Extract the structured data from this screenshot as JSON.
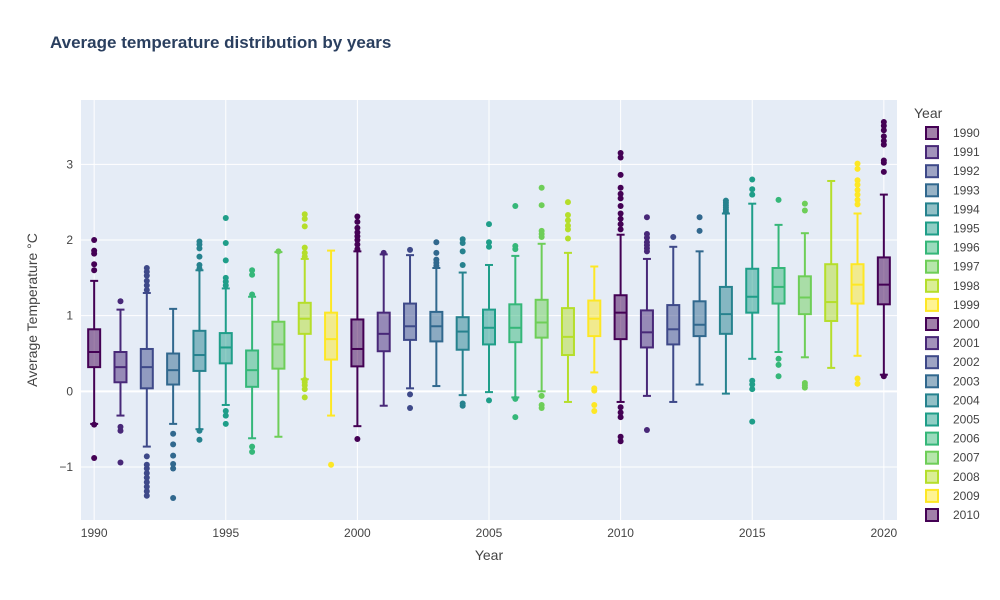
{
  "chart_data": {
    "type": "box",
    "title": "Average temperature distribution by years",
    "xlabel": "Year",
    "ylabel": "Average Temperature °C",
    "xlim": [
      1989.5,
      2020.5
    ],
    "ylim": [
      -1.7,
      3.85
    ],
    "x_ticks": [
      1990,
      1995,
      2000,
      2005,
      2010,
      2015,
      2020
    ],
    "y_ticks": [
      -1,
      0,
      1,
      2,
      3
    ],
    "y_tick_labels": [
      "−1",
      "0",
      "1",
      "2",
      "3"
    ],
    "legend": {
      "title": "Year",
      "position": "right",
      "entries": [
        "1990",
        "1991",
        "1992",
        "1993",
        "1994",
        "1995",
        "1996",
        "1997",
        "1998",
        "1999",
        "2000",
        "2001",
        "2002",
        "2003",
        "2004",
        "2005",
        "2006",
        "2007",
        "2008",
        "2009",
        "2010"
      ]
    },
    "colors": [
      "#440154",
      "#482878",
      "#3e4989",
      "#31688e",
      "#26828e",
      "#1f9e89",
      "#35b779",
      "#6ece58",
      "#b5de2b",
      "#fde725"
    ],
    "series": [
      {
        "name": "1990",
        "x": 1990,
        "q1": 0.32,
        "median": 0.52,
        "q3": 0.82,
        "whisker_low": -0.43,
        "whisker_high": 1.46,
        "outliers": [
          -0.88,
          -0.44,
          1.6,
          1.68,
          1.82,
          1.86,
          2.0
        ]
      },
      {
        "name": "1991",
        "x": 1991,
        "q1": 0.12,
        "median": 0.32,
        "q3": 0.52,
        "whisker_low": -0.32,
        "whisker_high": 1.08,
        "outliers": [
          -0.94,
          -0.52,
          -0.47,
          1.19
        ]
      },
      {
        "name": "1992",
        "x": 1992,
        "q1": 0.04,
        "median": 0.32,
        "q3": 0.56,
        "whisker_low": -0.73,
        "whisker_high": 1.3,
        "outliers": [
          -1.38,
          -1.32,
          -1.26,
          -1.2,
          -1.14,
          -1.08,
          -1.02,
          -0.97,
          -0.86,
          1.34,
          1.4,
          1.46,
          1.53,
          1.58,
          1.63
        ]
      },
      {
        "name": "1993",
        "x": 1993,
        "q1": 0.09,
        "median": 0.28,
        "q3": 0.5,
        "whisker_low": -0.43,
        "whisker_high": 1.09,
        "outliers": [
          -1.41,
          -1.02,
          -0.96,
          -0.85,
          -0.7,
          -0.56
        ]
      },
      {
        "name": "1994",
        "x": 1994,
        "q1": 0.27,
        "median": 0.48,
        "q3": 0.8,
        "whisker_low": -0.5,
        "whisker_high": 1.6,
        "outliers": [
          -0.64,
          -0.52,
          1.62,
          1.67,
          1.78,
          1.89,
          1.94,
          1.98
        ]
      },
      {
        "name": "1995",
        "x": 1995,
        "q1": 0.37,
        "median": 0.58,
        "q3": 0.77,
        "whisker_low": -0.18,
        "whisker_high": 1.36,
        "outliers": [
          -0.43,
          -0.32,
          -0.26,
          1.4,
          1.45,
          1.5,
          1.73,
          1.96,
          2.29
        ]
      },
      {
        "name": "1996",
        "x": 1996,
        "q1": 0.06,
        "median": 0.28,
        "q3": 0.54,
        "whisker_low": -0.62,
        "whisker_high": 1.25,
        "outliers": [
          -0.8,
          -0.73,
          1.28,
          1.54,
          1.6
        ]
      },
      {
        "name": "1997",
        "x": 1997,
        "q1": 0.3,
        "median": 0.62,
        "q3": 0.92,
        "whisker_low": -0.6,
        "whisker_high": 1.84,
        "outliers": [
          1.85
        ]
      },
      {
        "name": "1998",
        "x": 1998,
        "q1": 0.76,
        "median": 0.96,
        "q3": 1.17,
        "whisker_low": 0.16,
        "whisker_high": 1.75,
        "outliers": [
          -0.08,
          0.03,
          0.08,
          0.12,
          0.15,
          1.78,
          1.83,
          1.9,
          2.18,
          2.28,
          2.34
        ]
      },
      {
        "name": "1999",
        "x": 1999,
        "q1": 0.42,
        "median": 0.69,
        "q3": 1.04,
        "whisker_low": -0.32,
        "whisker_high": 1.86,
        "outliers": [
          -0.97
        ]
      },
      {
        "name": "2000",
        "x": 2000,
        "q1": 0.33,
        "median": 0.56,
        "q3": 0.95,
        "whisker_low": -0.46,
        "whisker_high": 1.85,
        "outliers": [
          -0.63,
          1.88,
          1.94,
          2.0,
          2.05,
          2.1,
          2.16,
          2.24,
          2.31
        ]
      },
      {
        "name": "2001",
        "x": 2001,
        "q1": 0.53,
        "median": 0.76,
        "q3": 1.04,
        "whisker_low": -0.19,
        "whisker_high": 1.81,
        "outliers": [
          1.83
        ]
      },
      {
        "name": "2002",
        "x": 2002,
        "q1": 0.68,
        "median": 0.86,
        "q3": 1.16,
        "whisker_low": 0.04,
        "whisker_high": 1.8,
        "outliers": [
          -0.22,
          -0.04,
          1.87
        ]
      },
      {
        "name": "2003",
        "x": 2003,
        "q1": 0.66,
        "median": 0.86,
        "q3": 1.05,
        "whisker_low": 0.07,
        "whisker_high": 1.63,
        "outliers": [
          1.66,
          1.7,
          1.74,
          1.83,
          1.97
        ]
      },
      {
        "name": "2004",
        "x": 2004,
        "q1": 0.55,
        "median": 0.79,
        "q3": 0.98,
        "whisker_low": -0.05,
        "whisker_high": 1.57,
        "outliers": [
          -0.19,
          -0.16,
          1.67,
          1.85,
          1.96,
          2.01
        ]
      },
      {
        "name": "2005",
        "x": 2005,
        "q1": 0.62,
        "median": 0.84,
        "q3": 1.08,
        "whisker_low": -0.01,
        "whisker_high": 1.67,
        "outliers": [
          -0.12,
          1.91,
          1.97,
          2.21
        ]
      },
      {
        "name": "2006",
        "x": 2006,
        "q1": 0.65,
        "median": 0.84,
        "q3": 1.15,
        "whisker_low": -0.08,
        "whisker_high": 1.79,
        "outliers": [
          -0.34,
          -0.1,
          1.88,
          1.92,
          2.45
        ]
      },
      {
        "name": "2007",
        "x": 2007,
        "q1": 0.71,
        "median": 0.91,
        "q3": 1.21,
        "whisker_low": 0.0,
        "whisker_high": 1.95,
        "outliers": [
          -0.22,
          -0.18,
          -0.06,
          2.04,
          2.08,
          2.12,
          2.46,
          2.69
        ]
      },
      {
        "name": "2008",
        "x": 2008,
        "q1": 0.48,
        "median": 0.72,
        "q3": 1.1,
        "whisker_low": -0.14,
        "whisker_high": 1.83,
        "outliers": [
          2.02,
          2.14,
          2.19,
          2.26,
          2.33,
          2.5
        ]
      },
      {
        "name": "2009",
        "x": 2009,
        "q1": 0.73,
        "median": 0.96,
        "q3": 1.2,
        "whisker_low": 0.25,
        "whisker_high": 1.65,
        "outliers": [
          -0.26,
          -0.18,
          0.01,
          0.04
        ]
      },
      {
        "name": "2010",
        "x": 2010,
        "q1": 0.69,
        "median": 1.04,
        "q3": 1.27,
        "whisker_low": -0.14,
        "whisker_high": 2.07,
        "outliers": [
          -0.66,
          -0.6,
          -0.34,
          -0.28,
          -0.21,
          2.14,
          2.21,
          2.28,
          2.35,
          2.45,
          2.55,
          2.61,
          2.69,
          2.86,
          3.09,
          3.15
        ]
      },
      {
        "name": "2011",
        "x": 2011,
        "q1": 0.58,
        "median": 0.78,
        "q3": 1.07,
        "whisker_low": -0.06,
        "whisker_high": 1.75,
        "outliers": [
          -0.51,
          1.85,
          1.89,
          1.93,
          1.97,
          2.03,
          2.08,
          2.3
        ]
      },
      {
        "name": "2012",
        "x": 2012,
        "q1": 0.62,
        "median": 0.82,
        "q3": 1.14,
        "whisker_low": -0.14,
        "whisker_high": 1.91,
        "outliers": [
          2.04
        ]
      },
      {
        "name": "2013",
        "x": 2013,
        "q1": 0.73,
        "median": 0.88,
        "q3": 1.19,
        "whisker_low": 0.09,
        "whisker_high": 1.85,
        "outliers": [
          2.12,
          2.3
        ]
      },
      {
        "name": "2014",
        "x": 2014,
        "q1": 0.76,
        "median": 1.02,
        "q3": 1.38,
        "whisker_low": -0.03,
        "whisker_high": 2.35,
        "outliers": [
          2.37,
          2.4,
          2.43,
          2.46,
          2.49,
          2.52
        ]
      },
      {
        "name": "2015",
        "x": 2015,
        "q1": 1.04,
        "median": 1.25,
        "q3": 1.62,
        "whisker_low": 0.43,
        "whisker_high": 2.48,
        "outliers": [
          -0.4,
          0.03,
          0.09,
          0.14,
          2.6,
          2.67,
          2.8
        ]
      },
      {
        "name": "2016",
        "x": 2016,
        "q1": 1.16,
        "median": 1.38,
        "q3": 1.63,
        "whisker_low": 0.52,
        "whisker_high": 2.2,
        "outliers": [
          0.2,
          0.35,
          0.43,
          2.53
        ]
      },
      {
        "name": "2017",
        "x": 2017,
        "q1": 1.02,
        "median": 1.24,
        "q3": 1.52,
        "whisker_low": 0.45,
        "whisker_high": 2.09,
        "outliers": [
          0.05,
          0.08,
          0.11,
          2.39,
          2.48
        ]
      },
      {
        "name": "2018",
        "x": 2018,
        "q1": 0.93,
        "median": 1.18,
        "q3": 1.68,
        "whisker_low": 0.31,
        "whisker_high": 2.78,
        "outliers": []
      },
      {
        "name": "2019",
        "x": 2019,
        "q1": 1.16,
        "median": 1.41,
        "q3": 1.68,
        "whisker_low": 0.47,
        "whisker_high": 2.35,
        "outliers": [
          0.1,
          0.17,
          2.47,
          2.53,
          2.6,
          2.66,
          2.73,
          2.79,
          2.94,
          3.01
        ]
      },
      {
        "name": "2020",
        "x": 2020,
        "q1": 1.15,
        "median": 1.41,
        "q3": 1.77,
        "whisker_low": 0.22,
        "whisker_high": 2.6,
        "outliers": [
          0.2,
          2.9,
          3.02,
          3.05,
          3.26,
          3.31,
          3.37,
          3.45,
          3.51,
          3.56
        ]
      }
    ]
  }
}
